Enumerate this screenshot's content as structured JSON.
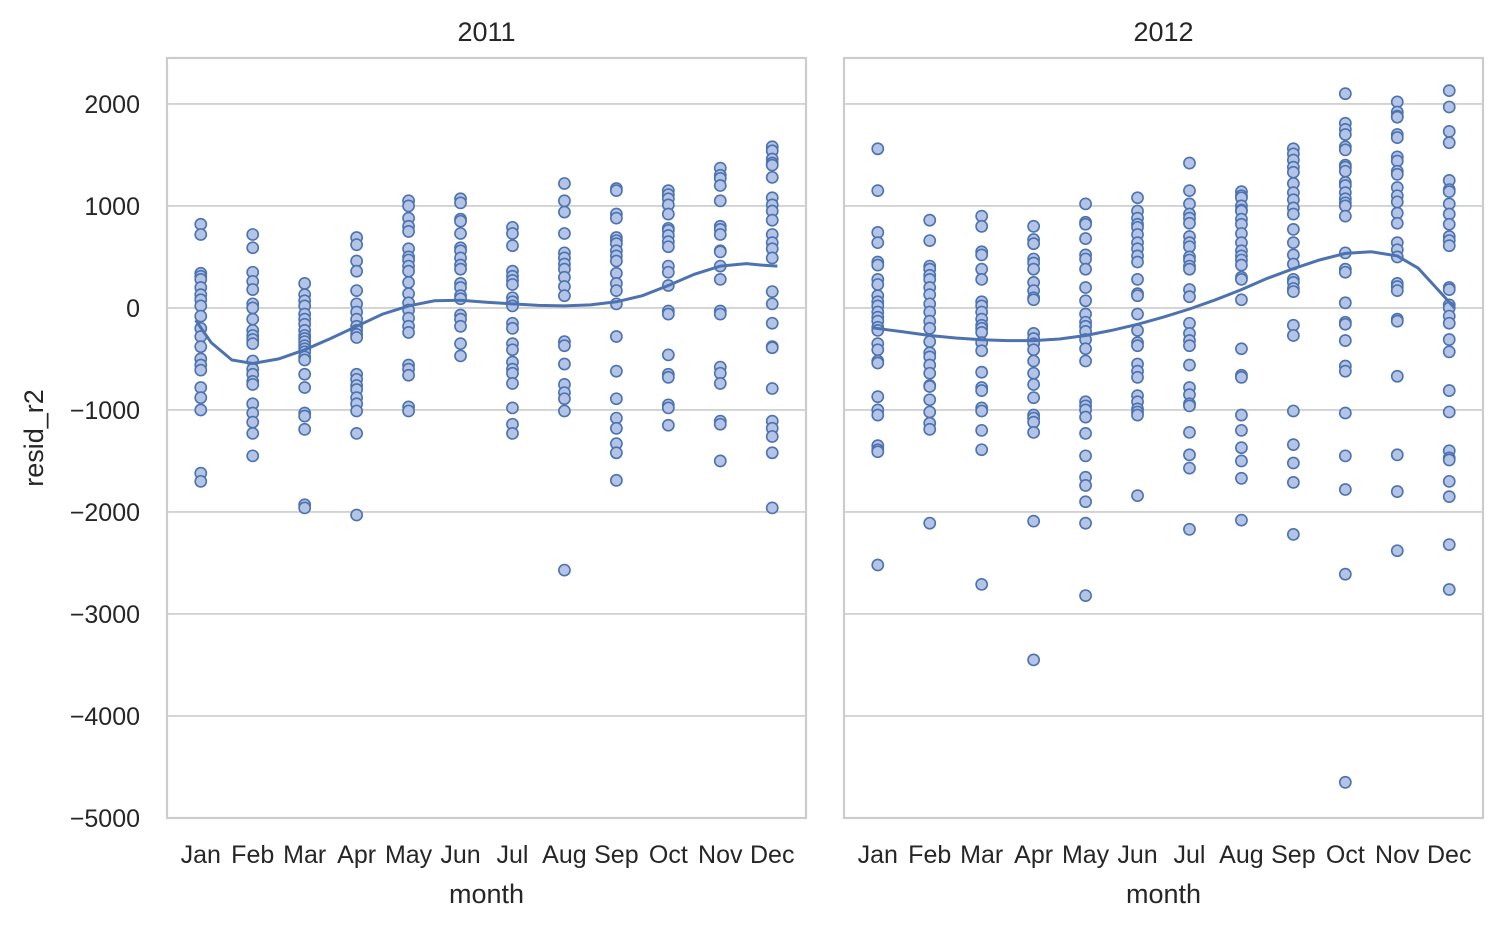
{
  "chart_data": {
    "type": "scatter",
    "ylabel": "resid_r2",
    "xlabel": "month",
    "categories": [
      "Jan",
      "Feb",
      "Mar",
      "Apr",
      "May",
      "Jun",
      "Jul",
      "Aug",
      "Sep",
      "Oct",
      "Nov",
      "Dec"
    ],
    "ylim": [
      -5000,
      2450
    ],
    "yticks": [
      2000,
      1000,
      0,
      -1000,
      -2000,
      -3000,
      -4000,
      -5000
    ],
    "ytick_labels": [
      "2000",
      "1000",
      "0",
      "−1000",
      "−2000",
      "−3000",
      "−4000",
      "−5000"
    ],
    "grid": "horizontal",
    "marker_color": "#4c72b0",
    "marker_fill": "#b3c4e6",
    "line_color": "#4c72b0",
    "panels": [
      {
        "title": "2011",
        "points": [
          [
            820,
            720,
            340,
            310,
            280,
            200,
            130,
            80,
            20,
            -80,
            -200,
            -280,
            -380,
            -500,
            -560,
            -610,
            -780,
            -880,
            -1000,
            -1620,
            -1700
          ],
          [
            720,
            590,
            350,
            260,
            180,
            40,
            0,
            -110,
            -220,
            -270,
            -310,
            -350,
            -520,
            -600,
            -650,
            -720,
            -750,
            -940,
            -1030,
            -1120,
            -1230,
            -1450
          ],
          [
            240,
            130,
            70,
            20,
            -60,
            -110,
            -160,
            -220,
            -270,
            -300,
            -330,
            -370,
            -400,
            -430,
            -480,
            -510,
            -650,
            -780,
            -1030,
            -1060,
            -1190,
            -1930,
            -1960
          ],
          [
            690,
            620,
            460,
            360,
            170,
            40,
            -40,
            -110,
            -180,
            -220,
            -260,
            -290,
            -650,
            -700,
            -760,
            -800,
            -880,
            -940,
            -1010,
            -1230,
            -2030
          ],
          [
            1050,
            1000,
            880,
            800,
            750,
            580,
            500,
            470,
            410,
            360,
            250,
            140,
            50,
            -20,
            -100,
            -180,
            -240,
            -560,
            -600,
            -660,
            -970,
            -1010
          ],
          [
            1070,
            1030,
            870,
            850,
            730,
            590,
            560,
            490,
            420,
            380,
            240,
            200,
            120,
            90,
            -70,
            -110,
            -180,
            -350,
            -470
          ],
          [
            790,
            730,
            610,
            360,
            310,
            270,
            230,
            100,
            60,
            20,
            -150,
            -200,
            -350,
            -410,
            -530,
            -600,
            -640,
            -740,
            -980,
            -1140,
            -1230
          ],
          [
            1220,
            1050,
            940,
            730,
            540,
            490,
            430,
            380,
            300,
            210,
            120,
            -330,
            -370,
            -550,
            -750,
            -830,
            -890,
            -1010,
            -2570
          ],
          [
            1170,
            1150,
            920,
            880,
            690,
            660,
            630,
            560,
            510,
            460,
            340,
            240,
            170,
            40,
            -280,
            -620,
            -890,
            -1080,
            -1180,
            -1330,
            -1420,
            -1690
          ],
          [
            1150,
            1110,
            1070,
            1010,
            920,
            780,
            760,
            710,
            650,
            600,
            410,
            350,
            220,
            -30,
            -60,
            -460,
            -650,
            -680,
            -950,
            -980,
            -1150
          ],
          [
            1370,
            1300,
            1270,
            1200,
            1050,
            800,
            770,
            720,
            560,
            550,
            410,
            280,
            -30,
            -60,
            -580,
            -640,
            -740,
            -1110,
            -1140,
            -1500
          ],
          [
            1580,
            1540,
            1460,
            1420,
            1400,
            1280,
            1080,
            1010,
            950,
            860,
            720,
            640,
            580,
            490,
            160,
            40,
            -150,
            -380,
            -390,
            -790,
            -1110,
            -1180,
            -1260,
            -1420,
            -1960
          ]
        ],
        "trend": [
          [
            0.9,
            -120
          ],
          [
            1.2,
            -340
          ],
          [
            1.6,
            -510
          ],
          [
            2.0,
            -545
          ],
          [
            2.5,
            -500
          ],
          [
            3.0,
            -410
          ],
          [
            3.5,
            -300
          ],
          [
            4.0,
            -180
          ],
          [
            4.5,
            -60
          ],
          [
            5.0,
            20
          ],
          [
            5.5,
            70
          ],
          [
            6.0,
            75
          ],
          [
            6.5,
            55
          ],
          [
            7.0,
            40
          ],
          [
            7.5,
            25
          ],
          [
            8.0,
            20
          ],
          [
            8.5,
            30
          ],
          [
            9.0,
            60
          ],
          [
            9.5,
            120
          ],
          [
            10.0,
            220
          ],
          [
            10.5,
            330
          ],
          [
            11.0,
            410
          ],
          [
            11.5,
            435
          ],
          [
            11.8,
            420
          ],
          [
            12.1,
            410
          ]
        ]
      },
      {
        "title": "2012",
        "points": [
          [
            1560,
            1150,
            740,
            640,
            450,
            420,
            280,
            230,
            120,
            60,
            20,
            -40,
            -90,
            -130,
            -190,
            -220,
            -350,
            -410,
            -520,
            -540,
            -870,
            -1000,
            -1050,
            -1350,
            -1390,
            -1410,
            -2520
          ],
          [
            860,
            660,
            410,
            380,
            320,
            280,
            200,
            130,
            40,
            -40,
            -130,
            -200,
            -330,
            -440,
            -480,
            -560,
            -640,
            -760,
            -770,
            -900,
            -1020,
            -1130,
            -1190,
            -2110
          ],
          [
            900,
            800,
            550,
            520,
            380,
            280,
            60,
            20,
            -40,
            -110,
            -170,
            -200,
            -240,
            -340,
            -420,
            -630,
            -780,
            -810,
            -980,
            -1010,
            -1200,
            -1390,
            -2710
          ],
          [
            800,
            670,
            630,
            480,
            440,
            380,
            250,
            170,
            100,
            80,
            -250,
            -300,
            -350,
            -410,
            -520,
            -640,
            -750,
            -880,
            -1050,
            -1080,
            -1120,
            -1220,
            -2090,
            -3450
          ],
          [
            1020,
            840,
            820,
            680,
            520,
            480,
            380,
            200,
            70,
            -60,
            -140,
            -180,
            -230,
            -310,
            -400,
            -520,
            -920,
            -960,
            -1000,
            -1070,
            -1230,
            -1450,
            -1660,
            -1740,
            -1900,
            -2110,
            -2820
          ],
          [
            1080,
            950,
            880,
            820,
            790,
            720,
            640,
            580,
            510,
            450,
            280,
            140,
            120,
            -60,
            -220,
            -340,
            -370,
            -550,
            -620,
            -680,
            -860,
            -920,
            -990,
            -1020,
            -1050,
            -1840
          ],
          [
            1420,
            1150,
            1020,
            920,
            880,
            830,
            700,
            640,
            600,
            500,
            470,
            410,
            380,
            180,
            110,
            -150,
            -250,
            -320,
            -370,
            -560,
            -780,
            -850,
            -940,
            -960,
            -1220,
            -1440,
            -1570,
            -2170
          ],
          [
            1140,
            1100,
            1080,
            1000,
            960,
            950,
            870,
            820,
            730,
            640,
            560,
            510,
            470,
            420,
            300,
            280,
            80,
            -400,
            -660,
            -680,
            -1050,
            -1200,
            -1370,
            -1500,
            -1670,
            -2080
          ],
          [
            1560,
            1510,
            1450,
            1380,
            1330,
            1220,
            1130,
            1060,
            980,
            920,
            770,
            640,
            520,
            430,
            280,
            250,
            190,
            160,
            -170,
            -270,
            -1010,
            -1340,
            -1520,
            -1710,
            -2220
          ],
          [
            2100,
            1810,
            1750,
            1700,
            1580,
            1550,
            1400,
            1380,
            1340,
            1230,
            1200,
            1130,
            1070,
            1030,
            1000,
            900,
            540,
            380,
            350,
            50,
            -140,
            -160,
            -320,
            -570,
            -620,
            -1030,
            -1450,
            -1780,
            -2610,
            -4650
          ],
          [
            2020,
            1920,
            1880,
            1870,
            1700,
            1670,
            1480,
            1440,
            1340,
            1310,
            1180,
            1100,
            1040,
            930,
            830,
            640,
            570,
            500,
            240,
            210,
            170,
            -110,
            -130,
            -670,
            -1440,
            -1800,
            -2380
          ],
          [
            2130,
            1970,
            1730,
            1620,
            1250,
            1160,
            1140,
            1020,
            920,
            820,
            700,
            660,
            610,
            200,
            180,
            30,
            0,
            -80,
            -150,
            -310,
            -430,
            -810,
            -1020,
            -1400,
            -1470,
            -1490,
            -1700,
            -1850,
            -2320,
            -2760
          ]
        ],
        "trend": [
          [
            0.9,
            -195
          ],
          [
            1.5,
            -235
          ],
          [
            2.0,
            -270
          ],
          [
            2.5,
            -295
          ],
          [
            3.0,
            -312
          ],
          [
            3.5,
            -320
          ],
          [
            4.0,
            -320
          ],
          [
            4.5,
            -305
          ],
          [
            5.0,
            -270
          ],
          [
            5.5,
            -220
          ],
          [
            6.0,
            -160
          ],
          [
            6.5,
            -90
          ],
          [
            7.0,
            -10
          ],
          [
            7.5,
            80
          ],
          [
            8.0,
            180
          ],
          [
            8.5,
            290
          ],
          [
            9.0,
            385
          ],
          [
            9.5,
            470
          ],
          [
            10.0,
            535
          ],
          [
            10.5,
            550
          ],
          [
            11.0,
            510
          ],
          [
            11.4,
            390
          ],
          [
            11.8,
            170
          ],
          [
            12.1,
            0
          ]
        ]
      }
    ]
  }
}
